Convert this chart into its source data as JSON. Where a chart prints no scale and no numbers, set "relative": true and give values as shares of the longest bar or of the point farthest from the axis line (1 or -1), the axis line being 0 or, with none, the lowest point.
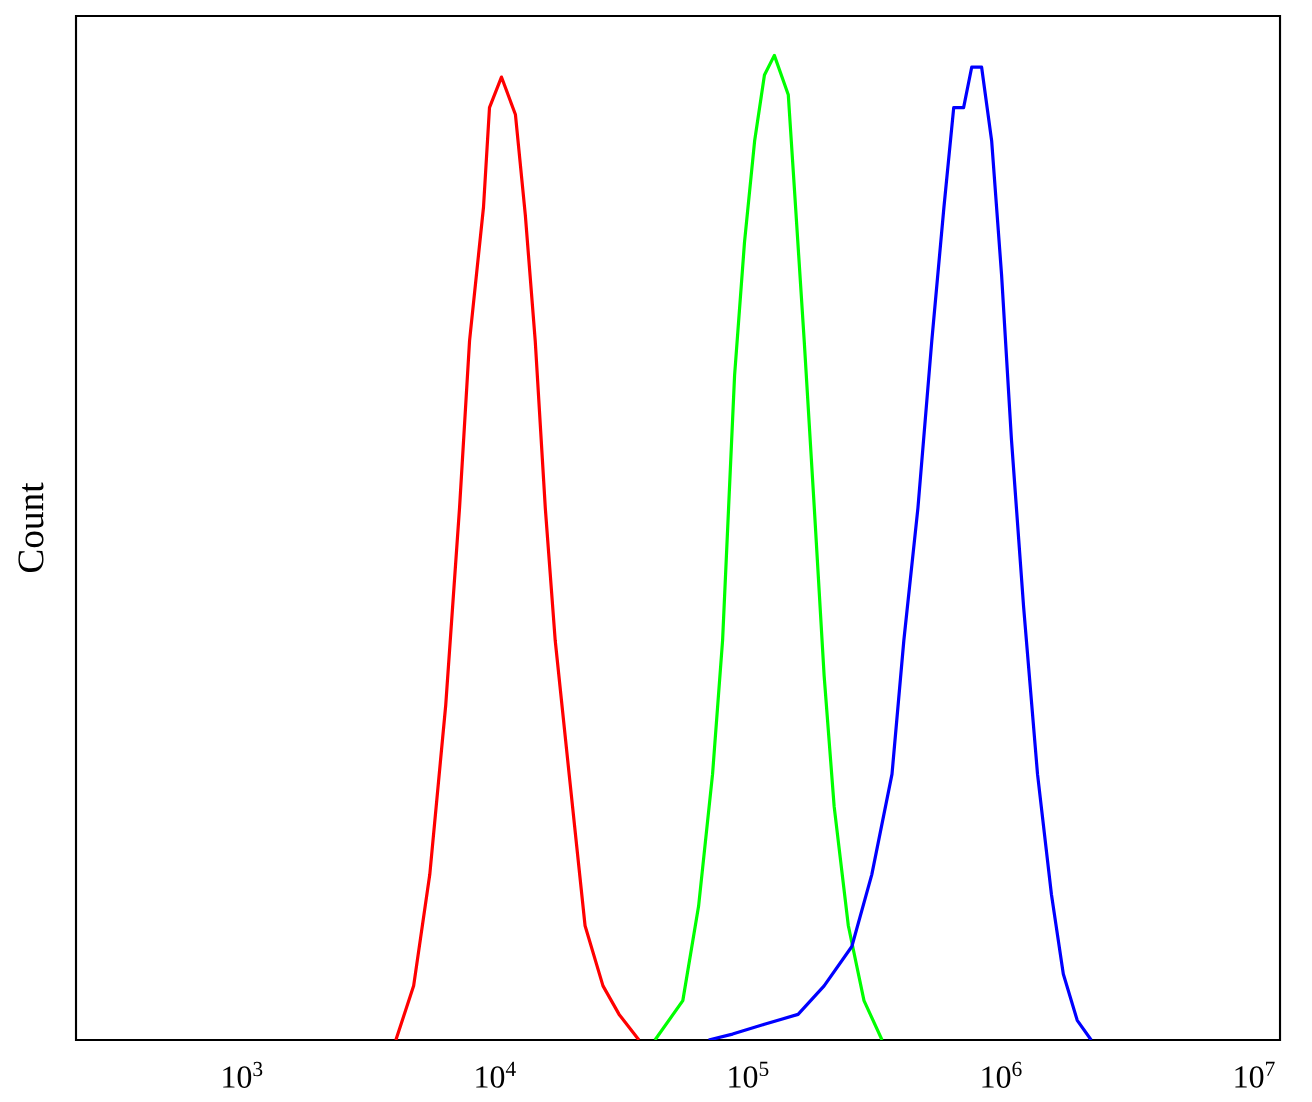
{
  "chart_data": {
    "type": "line",
    "relative": true,
    "ylabel": "Count",
    "log": "x",
    "xlim": [
      220,
      12600000
    ],
    "xticks": [
      {
        "value": 1000,
        "label": "10$^{3}$"
      },
      {
        "value": 10000,
        "label": "10$^{4}$"
      },
      {
        "value": 100000,
        "label": "10$^{5}$"
      },
      {
        "value": 1000000,
        "label": "10$^{6}$"
      },
      {
        "value": 10000000,
        "label": "10$^{7}$"
      }
    ],
    "grid": false,
    "marker": "none",
    "line_style": "solid",
    "series": [
      {
        "color": "#ff0000",
        "x": [
          4040,
          4750,
          5500,
          6360,
          7210,
          7900,
          8970,
          9470,
          10560,
          11990,
          13120,
          14360,
          15740,
          17220,
          19550,
          22600,
          26600,
          30800,
          36900
        ],
        "values": [
          0,
          0.055,
          0.168,
          0.34,
          0.54,
          0.71,
          0.846,
          0.947,
          0.978,
          0.94,
          0.838,
          0.71,
          0.54,
          0.406,
          0.27,
          0.116,
          0.055,
          0.026,
          0
        ]
      },
      {
        "color": "#00ff00",
        "x": [
          42700,
          55000,
          63500,
          72100,
          79000,
          83400,
          88100,
          96400,
          105700,
          115600,
          126500,
          143600,
          151700,
          166000,
          182000,
          199000,
          218000,
          248000,
          286000,
          337000
        ],
        "values": [
          0,
          0.04,
          0.136,
          0.27,
          0.406,
          0.54,
          0.675,
          0.81,
          0.913,
          0.98,
          1,
          0.96,
          0.866,
          0.71,
          0.54,
          0.37,
          0.237,
          0.116,
          0.04,
          0
        ]
      },
      {
        "color": "#0000ff",
        "x": [
          69600,
          86500,
          115600,
          157000,
          199000,
          256000,
          307000,
          369000,
          411000,
          467000,
          530000,
          592000,
          647000,
          708000,
          762000,
          834000,
          914000,
          1000000,
          1094000,
          1222000,
          1387000,
          1574000,
          1754000,
          1991000,
          2260000
        ],
        "values": [
          0,
          0.006,
          0.016,
          0.026,
          0.055,
          0.095,
          0.168,
          0.27,
          0.406,
          0.54,
          0.71,
          0.846,
          0.947,
          0.947,
          0.988,
          0.988,
          0.913,
          0.777,
          0.61,
          0.44,
          0.27,
          0.148,
          0.067,
          0.02,
          0
        ]
      }
    ]
  }
}
